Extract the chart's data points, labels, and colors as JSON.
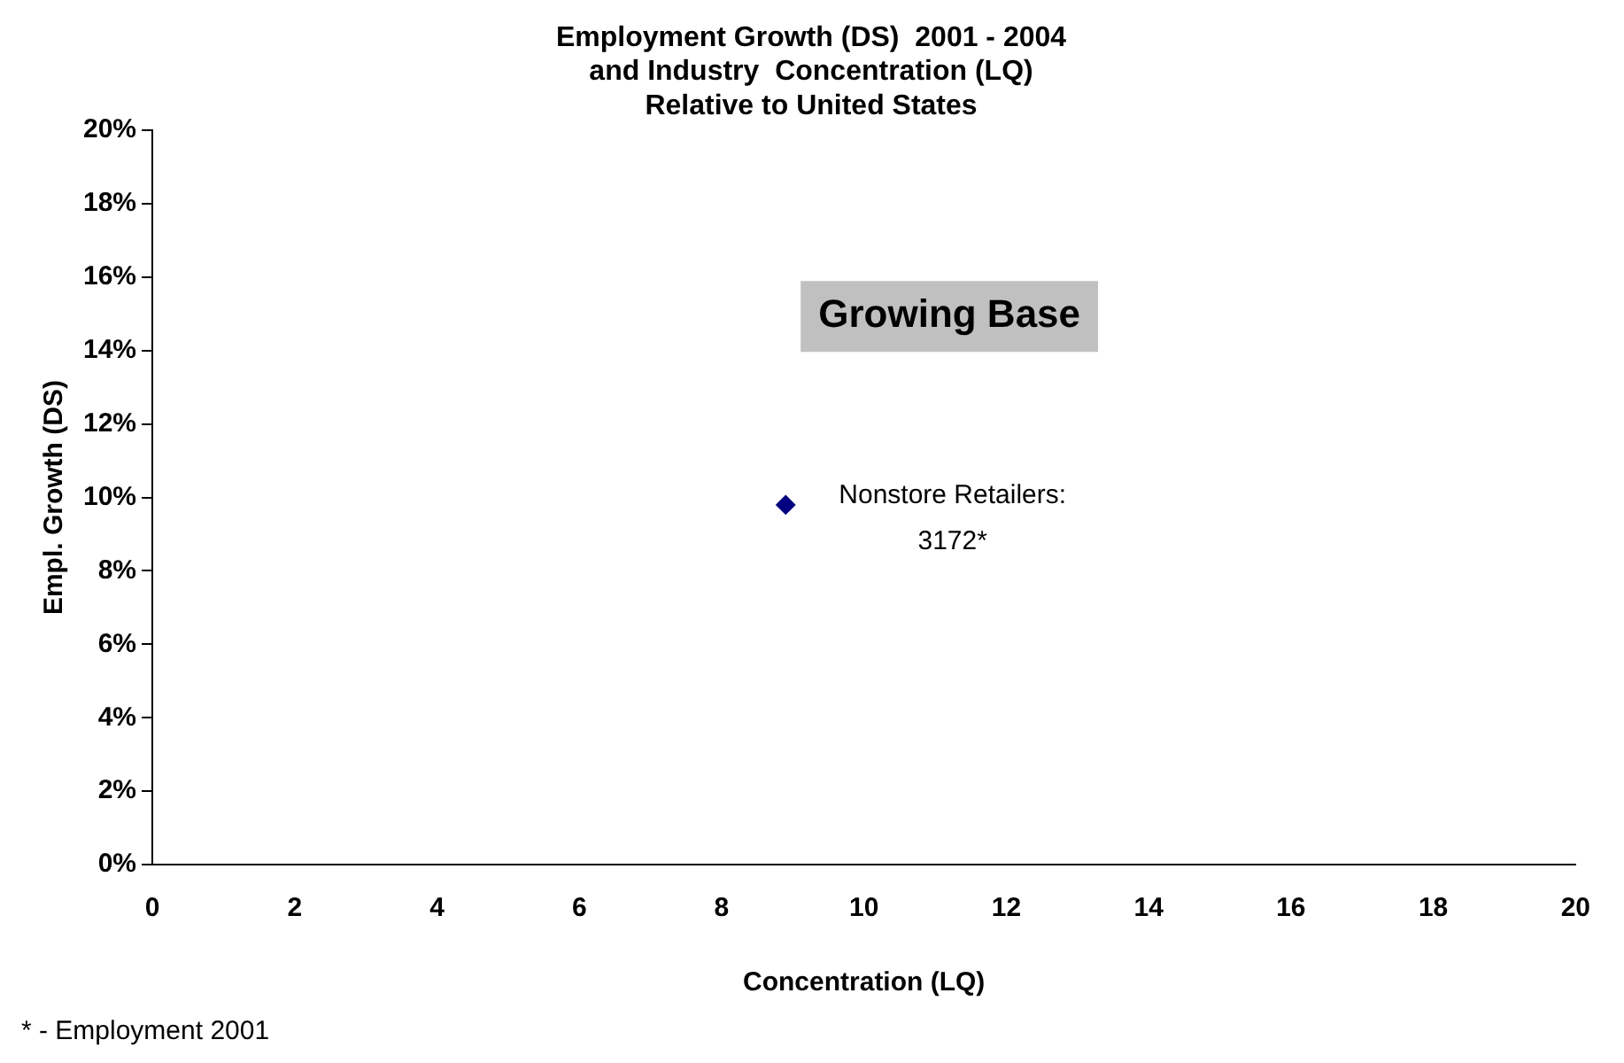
{
  "chart_data": {
    "type": "scatter",
    "title": "Employment Growth (DS)  2001 - 2004\nand Industry  Concentration (LQ)\nRelative to United States",
    "xlabel": "Concentration (LQ)",
    "ylabel": "Empl. Growth (DS)",
    "series": [
      {
        "color": "#000080",
        "x": [
          8.9
        ],
        "values": [
          9.8
        ]
      }
    ],
    "xlim": [
      0,
      20
    ],
    "xticks": [
      0,
      2,
      4,
      6,
      8,
      10,
      12,
      14,
      16,
      18,
      20
    ],
    "ylim": [
      0,
      20
    ],
    "yticks": [
      {
        "value": 0,
        "label": "0%"
      },
      {
        "value": 2,
        "label": "2%"
      },
      {
        "value": 4,
        "label": "4%"
      },
      {
        "value": 6,
        "label": "6%"
      },
      {
        "value": 8,
        "label": "8%"
      },
      {
        "value": 10,
        "label": "10%"
      },
      {
        "value": 12,
        "label": "12%"
      },
      {
        "value": 14,
        "label": "14%"
      },
      {
        "value": 16,
        "label": "16%"
      },
      {
        "value": 18,
        "label": "18%"
      },
      {
        "value": 20,
        "label": "20%"
      }
    ],
    "annotations": [
      "Growing Base",
      {
        "text": "Nonstore Retailers:\n3172*",
        "x": 8.9,
        "y": 9.8
      },
      "* - Employment 2001"
    ],
    "grid": false,
    "legend": false,
    "marker": "diamond"
  }
}
